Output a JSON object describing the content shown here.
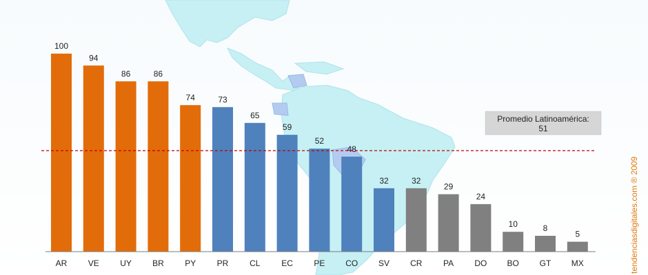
{
  "chart_data": {
    "type": "bar",
    "categories": [
      "AR",
      "VE",
      "UY",
      "BR",
      "PY",
      "PR",
      "CL",
      "EC",
      "PE",
      "CO",
      "SV",
      "CR",
      "PA",
      "DO",
      "BO",
      "GT",
      "MX"
    ],
    "values": [
      100,
      94,
      86,
      86,
      74,
      73,
      65,
      59,
      52,
      48,
      32,
      32,
      29,
      24,
      10,
      8,
      5
    ],
    "group_colors": [
      "#e36c0a",
      "#e36c0a",
      "#e36c0a",
      "#e36c0a",
      "#e36c0a",
      "#4f81bd",
      "#4f81bd",
      "#4f81bd",
      "#4f81bd",
      "#4f81bd",
      "#4f81bd",
      "#808080",
      "#808080",
      "#808080",
      "#808080",
      "#808080",
      "#808080"
    ],
    "ylim": [
      0,
      100
    ],
    "average": {
      "value": 51,
      "label_line1": "Promedio Latinoamérica:",
      "label_line2": "51",
      "color": "#c00000"
    },
    "credit": "tendenciasdigitales.com ® 2009",
    "grid": false
  }
}
